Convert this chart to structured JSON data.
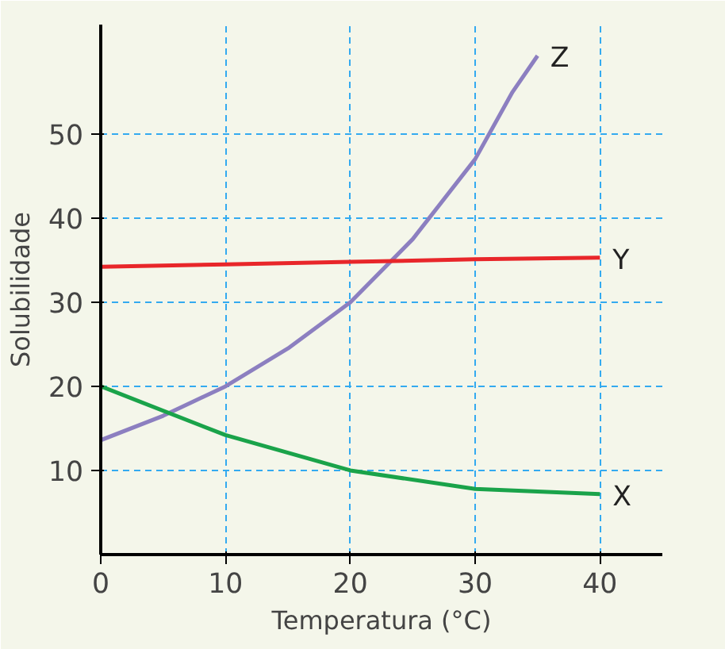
{
  "chart_data": {
    "type": "line",
    "xlabel": "Temperatura (°C)",
    "ylabel": "Solubilidade",
    "xlim": [
      0,
      45
    ],
    "ylim": [
      0,
      63
    ],
    "xticks": [
      0,
      10,
      20,
      30,
      40
    ],
    "yticks": [
      10,
      20,
      30,
      40,
      50
    ],
    "grid": true,
    "line_style": "solid",
    "marker": "none",
    "series": [
      {
        "name": "Z",
        "color": "#8c7fc0",
        "x": [
          0,
          5,
          10,
          15,
          20,
          25,
          30,
          33,
          35
        ],
        "values": [
          13.6,
          16.5,
          20,
          24.5,
          30,
          37.5,
          47,
          55,
          59.3
        ]
      },
      {
        "name": "Y",
        "color": "#e8262a",
        "x": [
          0,
          10,
          20,
          30,
          40
        ],
        "values": [
          34.2,
          34.5,
          34.8,
          35.1,
          35.3
        ]
      },
      {
        "name": "X",
        "color": "#1aa34a",
        "x": [
          0,
          10,
          20,
          30,
          40
        ],
        "values": [
          20,
          14.2,
          10,
          7.8,
          7.2
        ]
      }
    ]
  }
}
